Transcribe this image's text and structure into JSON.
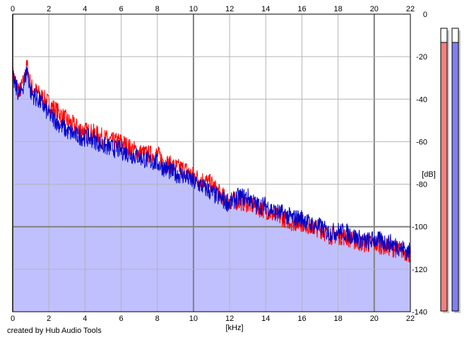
{
  "footer": {
    "credit": "created by Hub Audio Tools"
  },
  "chart_data": {
    "type": "area",
    "title": "",
    "xlabel": "[kHz]",
    "ylabel": "[dB]",
    "xlim": [
      0,
      22
    ],
    "ylim": [
      -140,
      0
    ],
    "x_ticks": [
      0,
      2,
      4,
      6,
      8,
      10,
      12,
      14,
      16,
      18,
      20,
      22
    ],
    "y_ticks": [
      0,
      -20,
      -40,
      -60,
      -80,
      -100,
      -120,
      -140
    ],
    "grid": true,
    "colors": {
      "fill": "#c0c0ff",
      "grid": "#b4b4b4",
      "major_grid": "#808080",
      "left_channel": "#ff0000",
      "right_channel": "#0000c8",
      "meter_left": "#f08080",
      "meter_right": "#8080f0"
    },
    "series": [
      {
        "color": "#ff0000",
        "x": [
          0,
          0.2,
          0.4,
          0.6,
          0.8,
          1,
          1.5,
          2,
          2.5,
          3,
          3.5,
          4,
          4.5,
          5,
          5.5,
          6,
          6.5,
          7,
          7.5,
          8,
          8.5,
          9,
          9.5,
          10,
          10.5,
          11,
          11.5,
          12,
          12.5,
          13,
          13.5,
          14,
          14.5,
          15,
          15.5,
          16,
          16.5,
          17,
          17.5,
          18,
          18.5,
          19,
          19.5,
          20,
          20.5,
          21,
          21.5,
          22
        ],
        "y": [
          -28,
          -33,
          -36,
          -32,
          -24,
          -34,
          -38,
          -42,
          -46,
          -50,
          -53,
          -55,
          -56,
          -58,
          -60,
          -60,
          -63,
          -65,
          -66,
          -66,
          -70,
          -72,
          -73,
          -76,
          -78,
          -80,
          -85,
          -88,
          -88,
          -89,
          -91,
          -92,
          -95,
          -96,
          -98,
          -98,
          -100,
          -101,
          -104,
          -104,
          -105,
          -107,
          -108,
          -108,
          -109,
          -110,
          -111,
          -113
        ]
      },
      {
        "color": "#0000c8",
        "x": [
          0,
          0.2,
          0.4,
          0.6,
          0.8,
          1,
          1.5,
          2,
          2.5,
          3,
          3.5,
          4,
          4.5,
          5,
          5.5,
          6,
          6.5,
          7,
          7.5,
          8,
          8.5,
          9,
          9.5,
          10,
          10.5,
          11,
          11.5,
          12,
          12.5,
          13,
          13.5,
          14,
          14.5,
          15,
          15.5,
          16,
          16.5,
          17,
          17.5,
          18,
          18.5,
          19,
          19.5,
          20,
          20.5,
          21,
          21.5,
          22
        ],
        "y": [
          -30,
          -35,
          -38,
          -33,
          -26,
          -37,
          -41,
          -47,
          -51,
          -55,
          -57,
          -58,
          -59,
          -62,
          -63,
          -64,
          -66,
          -67,
          -69,
          -70,
          -73,
          -75,
          -76,
          -79,
          -81,
          -84,
          -87,
          -89,
          -86,
          -86,
          -90,
          -90,
          -93,
          -94,
          -96,
          -96,
          -99,
          -100,
          -103,
          -102,
          -103,
          -105,
          -107,
          -106,
          -107,
          -108,
          -110,
          -112
        ]
      }
    ],
    "meters": {
      "left_level": 0.95,
      "right_level": 0.95
    }
  }
}
